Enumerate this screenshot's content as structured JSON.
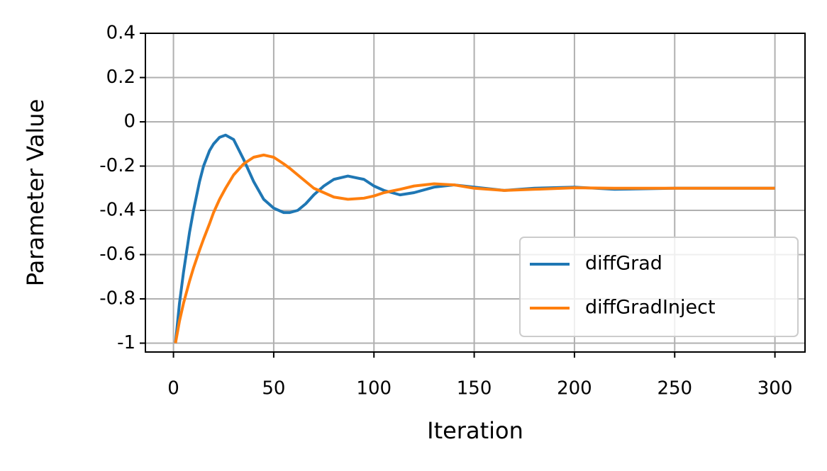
{
  "chart_data": {
    "type": "line",
    "x_label": "Iteration",
    "y_label": "Parameter Value",
    "x": [
      1,
      3,
      5,
      8,
      10,
      13,
      15,
      18,
      20,
      23,
      26,
      30,
      35,
      40,
      45,
      50,
      55,
      58,
      62,
      66,
      70,
      75,
      80,
      87,
      95,
      100,
      105,
      113,
      120,
      130,
      140,
      150,
      165,
      180,
      200,
      220,
      250,
      300
    ],
    "series": [
      {
        "name": "diffGrad",
        "color": "#1f77b4",
        "values": [
          -1,
          -0.82,
          -0.68,
          -0.5,
          -0.4,
          -0.27,
          -0.2,
          -0.13,
          -0.1,
          -0.07,
          -0.06,
          -0.08,
          -0.17,
          -0.27,
          -0.35,
          -0.39,
          -0.41,
          -0.41,
          -0.4,
          -0.37,
          -0.33,
          -0.29,
          -0.26,
          -0.245,
          -0.26,
          -0.29,
          -0.31,
          -0.33,
          -0.32,
          -0.295,
          -0.285,
          -0.295,
          -0.31,
          -0.3,
          -0.295,
          -0.305,
          -0.3,
          -0.3
        ]
      },
      {
        "name": "diffGradInject",
        "color": "#ff7f0e",
        "values": [
          -1,
          -0.9,
          -0.82,
          -0.72,
          -0.66,
          -0.58,
          -0.53,
          -0.46,
          -0.41,
          -0.35,
          -0.3,
          -0.24,
          -0.19,
          -0.16,
          -0.15,
          -0.16,
          -0.19,
          -0.21,
          -0.24,
          -0.27,
          -0.3,
          -0.32,
          -0.34,
          -0.35,
          -0.345,
          -0.335,
          -0.32,
          -0.305,
          -0.29,
          -0.28,
          -0.285,
          -0.3,
          -0.31,
          -0.305,
          -0.298,
          -0.3,
          -0.3,
          -0.3
        ]
      }
    ],
    "xlim": [
      -14,
      315
    ],
    "ylim": [
      -1.04,
      0.4
    ],
    "xticks": [
      0,
      50,
      100,
      150,
      200,
      250,
      300
    ],
    "yticks": [
      0.4,
      0.2,
      0,
      -0.2,
      -0.4,
      -0.6,
      -0.8,
      -1
    ],
    "grid": true,
    "legend": "lower right"
  }
}
